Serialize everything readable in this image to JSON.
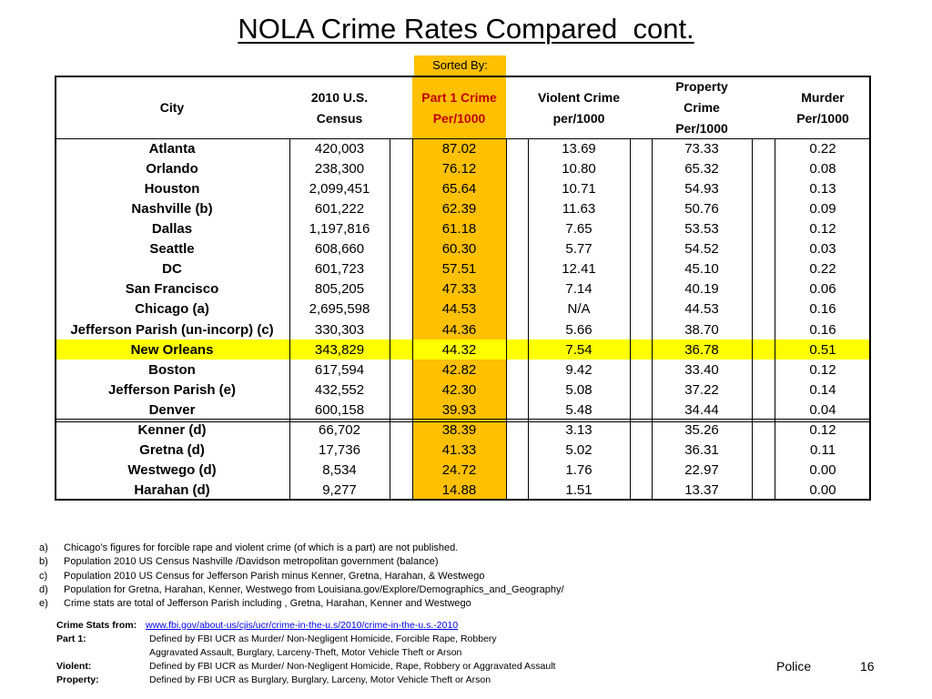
{
  "title": "NOLA Crime Rates Compared  cont.",
  "sort_label": "Sorted By:",
  "table": {
    "header": [
      [
        "City"
      ],
      [
        "2010 U.S.",
        "Census"
      ],
      [
        "Part 1  Crime",
        "Per/1000"
      ],
      [
        "Violent Crime",
        "per/1000"
      ],
      [
        "Property",
        "Crime",
        "Per/1000"
      ],
      [
        "Murder",
        "Per/1000"
      ]
    ],
    "highlight_row": 10,
    "rows": [
      [
        "Atlanta",
        "420,003",
        "87.02",
        "13.69",
        "73.33",
        "0.22"
      ],
      [
        "Orlando",
        "238,300",
        "76.12",
        "10.80",
        "65.32",
        "0.08"
      ],
      [
        "Houston",
        "2,099,451",
        "65.64",
        "10.71",
        "54.93",
        "0.13"
      ],
      [
        "Nashville (b)",
        "601,222",
        "62.39",
        "11.63",
        "50.76",
        "0.09"
      ],
      [
        "Dallas",
        "1,197,816",
        "61.18",
        "7.65",
        "53.53",
        "0.12"
      ],
      [
        "Seattle",
        "608,660",
        "60.30",
        "5.77",
        "54.52",
        "0.03"
      ],
      [
        "DC",
        "601,723",
        "57.51",
        "12.41",
        "45.10",
        "0.22"
      ],
      [
        "San Francisco",
        "805,205",
        "47.33",
        "7.14",
        "40.19",
        "0.06"
      ],
      [
        "Chicago (a)",
        "2,695,598",
        "44.53",
        "N/A",
        "44.53",
        "0.16"
      ],
      [
        "Jefferson Parish (un-incorp) (c)",
        "330,303",
        "44.36",
        "5.66",
        "38.70",
        "0.16"
      ],
      [
        "New Orleans",
        "343,829",
        "44.32",
        "7.54",
        "36.78",
        "0.51"
      ],
      [
        "Boston",
        "617,594",
        "42.82",
        "9.42",
        "33.40",
        "0.12"
      ],
      [
        "Jefferson Parish (e)",
        "432,552",
        "42.30",
        "5.08",
        "37.22",
        "0.14"
      ],
      [
        "Denver",
        "600,158",
        "39.93",
        "5.48",
        "34.44",
        "0.04"
      ],
      [
        "Kenner (d)",
        "66,702",
        "38.39",
        "3.13",
        "35.26",
        "0.12"
      ],
      [
        "Gretna (d)",
        "17,736",
        "41.33",
        "5.02",
        "36.31",
        "0.11"
      ],
      [
        "Westwego (d)",
        "8,534",
        "24.72",
        "1.76",
        "22.97",
        "0.00"
      ],
      [
        "Harahan (d)",
        "9,277",
        "14.88",
        "1.51",
        "13.37",
        "0.00"
      ]
    ]
  },
  "footnotes": [
    {
      "marker": "a)",
      "text": "Chicago’s figures for forcible rape and violent crime (of which is a part) are not published."
    },
    {
      "marker": "b)",
      "text": "Population 2010 US Census Nashville /Davidson metropolitan government (balance)"
    },
    {
      "marker": "c)",
      "text": "Population 2010 US Census for Jefferson Parish minus Kenner, Gretna, Harahan, & Westwego"
    },
    {
      "marker": "d)",
      "text": "Population for Gretna, Harahan, Kenner, Westwego from Louisiana.gov/Explore/Demographics_and_Geography/"
    },
    {
      "marker": "e)",
      "text": "Crime stats are total of Jefferson Parish including , Gretna, Harahan, Kenner and Westwego"
    }
  ],
  "source": {
    "label": "Crime Stats from:",
    "link": "www.fbi.gov/about-us/cjis/ucr/crime-in-the-u.s/2010/crime-in-the-u.s.-2010"
  },
  "definitions": [
    {
      "label": "Part 1:",
      "lines": [
        "Defined by FBI UCR as Murder/ Non-Negligent Homicide, Forcible Rape, Robbery",
        "Aggravated Assault, Burglary, Larceny-Theft, Motor Vehicle Theft or Arson"
      ]
    },
    {
      "label": "Violent:",
      "lines": [
        "Defined by FBI UCR as Murder/ Non-Negligent Homicide, Rape, Robbery or Aggravated Assault"
      ]
    },
    {
      "label": "Property:",
      "lines": [
        "Defined by FBI UCR as Burglary, Burglary, Larceny, Motor Vehicle Theft or Arson"
      ]
    }
  ],
  "footer": {
    "section": "Police",
    "page": "16"
  }
}
